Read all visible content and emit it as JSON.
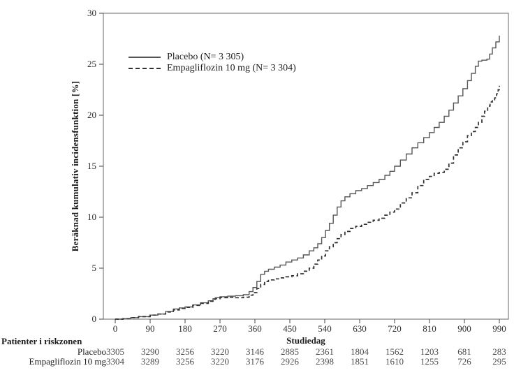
{
  "legend": {
    "items": [
      {
        "label": "Placebo (N= 3 305)",
        "style": "solid"
      },
      {
        "label": "Empagliflozin 10 mg (N= 3 304)",
        "style": "dashed"
      }
    ]
  },
  "chart_data": {
    "type": "line",
    "subtype": "kaplan-meier-cumulative-incidence",
    "title": "",
    "xlabel": "Studiedag",
    "ylabel": "Beräknad kumulativ incidensfunktion [%]",
    "xlim": [
      0,
      990
    ],
    "ylim": [
      0,
      30
    ],
    "x_ticks": [
      0,
      90,
      180,
      270,
      360,
      450,
      540,
      630,
      720,
      810,
      900,
      990
    ],
    "y_ticks": [
      0,
      5,
      10,
      15,
      20,
      25,
      30
    ],
    "grid": false,
    "legend_position": "upper-left-inside",
    "series": [
      {
        "name": "Placebo (N= 3 305)",
        "line": "solid",
        "color": "#555555",
        "points": [
          [
            0,
            0
          ],
          [
            20,
            0.05
          ],
          [
            40,
            0.15
          ],
          [
            60,
            0.25
          ],
          [
            90,
            0.4
          ],
          [
            110,
            0.5
          ],
          [
            130,
            0.75
          ],
          [
            150,
            1.0
          ],
          [
            165,
            1.1
          ],
          [
            180,
            1.2
          ],
          [
            200,
            1.4
          ],
          [
            220,
            1.6
          ],
          [
            240,
            1.8
          ],
          [
            252,
            2.0
          ],
          [
            258,
            2.1
          ],
          [
            270,
            2.2
          ],
          [
            290,
            2.25
          ],
          [
            310,
            2.3
          ],
          [
            330,
            2.4
          ],
          [
            345,
            2.7
          ],
          [
            355,
            3.1
          ],
          [
            365,
            3.7
          ],
          [
            375,
            4.4
          ],
          [
            385,
            4.7
          ],
          [
            395,
            4.9
          ],
          [
            410,
            5.1
          ],
          [
            425,
            5.3
          ],
          [
            440,
            5.6
          ],
          [
            455,
            5.8
          ],
          [
            470,
            6.0
          ],
          [
            485,
            6.3
          ],
          [
            500,
            6.7
          ],
          [
            512,
            7.0
          ],
          [
            522,
            7.4
          ],
          [
            532,
            8.0
          ],
          [
            542,
            8.7
          ],
          [
            552,
            9.4
          ],
          [
            562,
            10.2
          ],
          [
            572,
            11.0
          ],
          [
            582,
            11.6
          ],
          [
            592,
            12.0
          ],
          [
            605,
            12.3
          ],
          [
            620,
            12.6
          ],
          [
            635,
            12.8
          ],
          [
            650,
            13.1
          ],
          [
            665,
            13.4
          ],
          [
            680,
            13.7
          ],
          [
            695,
            14.1
          ],
          [
            708,
            14.5
          ],
          [
            720,
            15.0
          ],
          [
            735,
            15.6
          ],
          [
            750,
            16.2
          ],
          [
            765,
            16.8
          ],
          [
            780,
            17.3
          ],
          [
            795,
            17.8
          ],
          [
            810,
            18.3
          ],
          [
            822,
            18.8
          ],
          [
            835,
            19.3
          ],
          [
            848,
            19.9
          ],
          [
            860,
            20.5
          ],
          [
            872,
            21.2
          ],
          [
            884,
            21.9
          ],
          [
            896,
            22.6
          ],
          [
            908,
            23.4
          ],
          [
            918,
            24.1
          ],
          [
            928,
            24.8
          ],
          [
            936,
            25.3
          ],
          [
            945,
            25.4
          ],
          [
            958,
            25.5
          ],
          [
            965,
            26.0
          ],
          [
            972,
            26.6
          ],
          [
            981,
            27.2
          ],
          [
            990,
            27.8
          ]
        ]
      },
      {
        "name": "Empagliflozin 10 mg (N= 3 304)",
        "line": "dashed",
        "color": "#303030",
        "points": [
          [
            0,
            0
          ],
          [
            20,
            0.05
          ],
          [
            40,
            0.15
          ],
          [
            60,
            0.25
          ],
          [
            90,
            0.4
          ],
          [
            110,
            0.5
          ],
          [
            130,
            0.7
          ],
          [
            150,
            0.9
          ],
          [
            165,
            1.05
          ],
          [
            180,
            1.15
          ],
          [
            200,
            1.35
          ],
          [
            220,
            1.55
          ],
          [
            240,
            1.75
          ],
          [
            252,
            1.95
          ],
          [
            258,
            2.0
          ],
          [
            270,
            2.1
          ],
          [
            290,
            2.15
          ],
          [
            310,
            2.1
          ],
          [
            330,
            2.15
          ],
          [
            345,
            2.35
          ],
          [
            355,
            2.6
          ],
          [
            365,
            3.0
          ],
          [
            375,
            3.4
          ],
          [
            385,
            3.7
          ],
          [
            395,
            3.85
          ],
          [
            410,
            3.95
          ],
          [
            425,
            4.05
          ],
          [
            440,
            4.15
          ],
          [
            455,
            4.25
          ],
          [
            470,
            4.45
          ],
          [
            485,
            4.7
          ],
          [
            500,
            5.0
          ],
          [
            512,
            5.4
          ],
          [
            522,
            5.8
          ],
          [
            532,
            6.2
          ],
          [
            542,
            6.7
          ],
          [
            552,
            7.1
          ],
          [
            562,
            7.5
          ],
          [
            572,
            7.9
          ],
          [
            582,
            8.3
          ],
          [
            592,
            8.6
          ],
          [
            605,
            8.9
          ],
          [
            620,
            9.1
          ],
          [
            635,
            9.3
          ],
          [
            650,
            9.5
          ],
          [
            665,
            9.7
          ],
          [
            680,
            9.9
          ],
          [
            695,
            10.2
          ],
          [
            708,
            10.5
          ],
          [
            720,
            10.8
          ],
          [
            735,
            11.4
          ],
          [
            750,
            11.9
          ],
          [
            765,
            12.4
          ],
          [
            780,
            13.1
          ],
          [
            795,
            13.7
          ],
          [
            810,
            14.0
          ],
          [
            822,
            14.3
          ],
          [
            835,
            14.4
          ],
          [
            848,
            14.7
          ],
          [
            860,
            15.3
          ],
          [
            872,
            16.1
          ],
          [
            884,
            16.8
          ],
          [
            896,
            17.4
          ],
          [
            908,
            18.0
          ],
          [
            918,
            18.4
          ],
          [
            928,
            18.8
          ],
          [
            936,
            19.3
          ],
          [
            945,
            19.9
          ],
          [
            952,
            20.4
          ],
          [
            960,
            20.9
          ],
          [
            966,
            21.3
          ],
          [
            972,
            21.5
          ],
          [
            978,
            21.7
          ],
          [
            983,
            22.1
          ],
          [
            987,
            22.5
          ],
          [
            990,
            22.9
          ]
        ]
      }
    ]
  },
  "risk_table": {
    "header": "Patienter i riskzonen",
    "days": [
      0,
      90,
      180,
      270,
      360,
      450,
      540,
      630,
      720,
      810,
      900,
      990
    ],
    "rows": [
      {
        "label": "Placebo",
        "values": [
          "3305",
          "3290",
          "3256",
          "3220",
          "3146",
          "2885",
          "2361",
          "1804",
          "1562",
          "1203",
          "681",
          "283"
        ]
      },
      {
        "label": "Empagliflozin 10 mg",
        "values": [
          "3304",
          "3289",
          "3256",
          "3220",
          "3176",
          "2926",
          "2398",
          "1851",
          "1610",
          "1255",
          "726",
          "295"
        ]
      }
    ]
  },
  "colors": {
    "frame": "#808080",
    "tick": "#606060",
    "text": "#1c1c1c",
    "risk_numbers": "#4d4d4d"
  }
}
